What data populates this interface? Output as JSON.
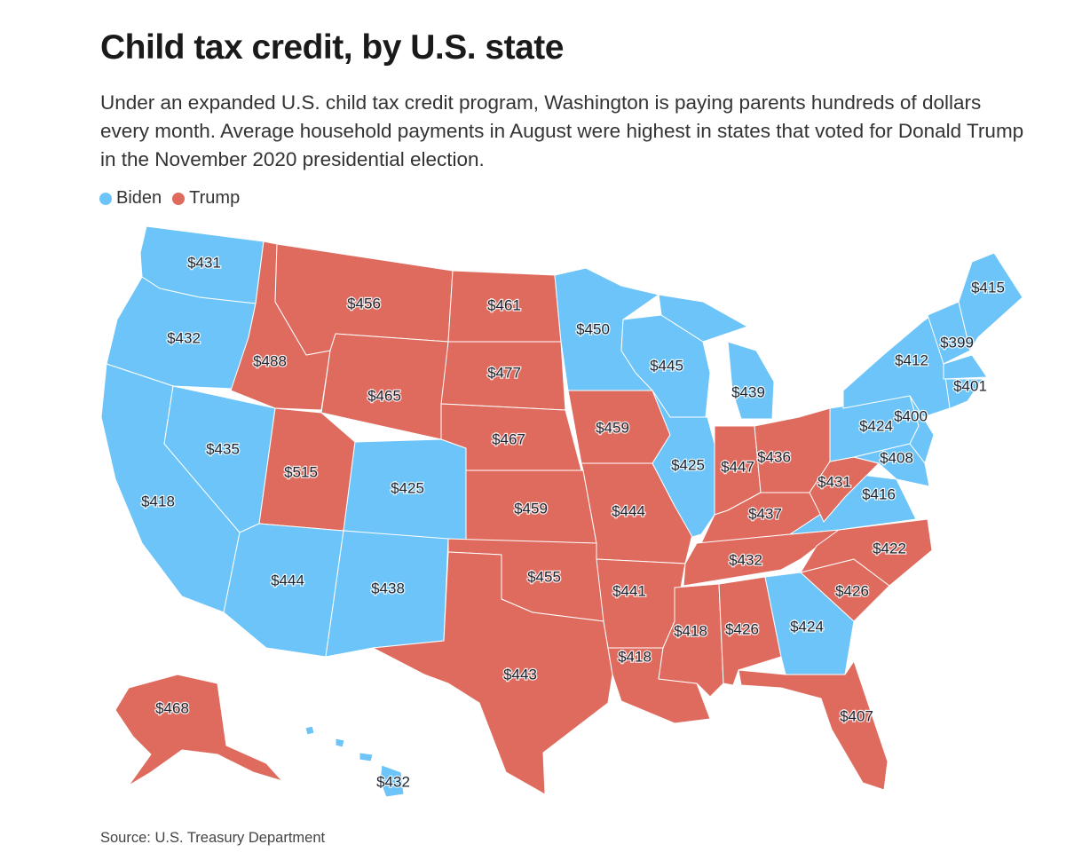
{
  "title": "Child tax credit, by U.S. state",
  "subtitle": "Under an expanded U.S. child tax credit program, Washington is paying parents hundreds of dollars every month. Average household payments in August were highest in states that voted for Donald Trump in the November 2020 presidential election.",
  "legend": [
    {
      "label": "Biden",
      "color": "#6cc4f8"
    },
    {
      "label": "Trump",
      "color": "#df6b5e"
    }
  ],
  "source": "Source: U.S. Treasury Department",
  "colors": {
    "Biden": "#6cc4f8",
    "Trump": "#df6b5e",
    "border": "#ffffff"
  },
  "states": [
    {
      "code": "WA",
      "party": "Biden",
      "value": "$431"
    },
    {
      "code": "OR",
      "party": "Biden",
      "value": "$432"
    },
    {
      "code": "CA",
      "party": "Biden",
      "value": "$418"
    },
    {
      "code": "NV",
      "party": "Biden",
      "value": "$435"
    },
    {
      "code": "ID",
      "party": "Trump",
      "value": "$488"
    },
    {
      "code": "MT",
      "party": "Trump",
      "value": "$456"
    },
    {
      "code": "WY",
      "party": "Trump",
      "value": "$465"
    },
    {
      "code": "UT",
      "party": "Trump",
      "value": "$515"
    },
    {
      "code": "CO",
      "party": "Biden",
      "value": "$425"
    },
    {
      "code": "AZ",
      "party": "Biden",
      "value": "$444"
    },
    {
      "code": "NM",
      "party": "Biden",
      "value": "$438"
    },
    {
      "code": "ND",
      "party": "Trump",
      "value": "$461"
    },
    {
      "code": "SD",
      "party": "Trump",
      "value": "$477"
    },
    {
      "code": "NE",
      "party": "Trump",
      "value": "$467"
    },
    {
      "code": "KS",
      "party": "Trump",
      "value": "$459"
    },
    {
      "code": "OK",
      "party": "Trump",
      "value": "$455"
    },
    {
      "code": "TX",
      "party": "Trump",
      "value": "$443"
    },
    {
      "code": "MN",
      "party": "Biden",
      "value": "$450"
    },
    {
      "code": "IA",
      "party": "Trump",
      "value": "$459"
    },
    {
      "code": "MO",
      "party": "Trump",
      "value": "$444"
    },
    {
      "code": "AR",
      "party": "Trump",
      "value": "$441"
    },
    {
      "code": "LA",
      "party": "Trump",
      "value": "$418"
    },
    {
      "code": "WI",
      "party": "Biden",
      "value": "$445"
    },
    {
      "code": "IL",
      "party": "Biden",
      "value": "$425"
    },
    {
      "code": "MI",
      "party": "Biden",
      "value": "$439"
    },
    {
      "code": "IN",
      "party": "Trump",
      "value": "$447"
    },
    {
      "code": "OH",
      "party": "Trump",
      "value": "$436"
    },
    {
      "code": "KY",
      "party": "Trump",
      "value": "$437"
    },
    {
      "code": "TN",
      "party": "Trump",
      "value": "$432"
    },
    {
      "code": "MS",
      "party": "Trump",
      "value": "$418"
    },
    {
      "code": "AL",
      "party": "Trump",
      "value": "$426"
    },
    {
      "code": "GA",
      "party": "Biden",
      "value": "$424"
    },
    {
      "code": "FL",
      "party": "Trump",
      "value": "$407"
    },
    {
      "code": "SC",
      "party": "Trump",
      "value": "$426"
    },
    {
      "code": "NC",
      "party": "Trump",
      "value": "$422"
    },
    {
      "code": "VA",
      "party": "Biden",
      "value": "$416"
    },
    {
      "code": "WV",
      "party": "Trump",
      "value": "$431"
    },
    {
      "code": "PA",
      "party": "Biden",
      "value": "$424"
    },
    {
      "code": "NY",
      "party": "Biden",
      "value": "$412"
    },
    {
      "code": "NJ",
      "party": "Biden",
      "value": "$400"
    },
    {
      "code": "MD",
      "party": "Biden",
      "value": "$408"
    },
    {
      "code": "NH",
      "party": "Biden",
      "value": "$399"
    },
    {
      "code": "MA",
      "party": "Biden",
      "value": "$401"
    },
    {
      "code": "ME",
      "party": "Biden",
      "value": "$415"
    },
    {
      "code": "AK",
      "party": "Trump",
      "value": "$468"
    },
    {
      "code": "HI",
      "party": "Biden",
      "value": "$432"
    }
  ]
}
